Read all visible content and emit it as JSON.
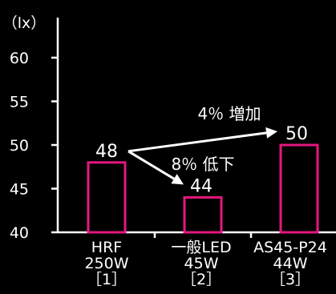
{
  "chart_data": {
    "type": "bar",
    "unit_label": "（lx）",
    "ylim": [
      40,
      63
    ],
    "yticks": [
      40,
      45,
      50,
      55,
      60
    ],
    "categories": [
      [
        "HRF",
        "250W",
        "［1］"
      ],
      [
        "一般LED",
        "45W",
        "［2］"
      ],
      [
        "AS45-P24",
        "44W",
        "［3］"
      ]
    ],
    "values": [
      48,
      44,
      50
    ],
    "value_labels": [
      "48",
      "44",
      "50"
    ],
    "annotations": [
      {
        "text": "4％ 増加",
        "from": 0,
        "to": 2
      },
      {
        "text": "8％ 低下",
        "from": 0,
        "to": 1
      }
    ],
    "colors": {
      "bar_outline": "#e5177e",
      "bar_fill": "#000000",
      "text": "#ffffff",
      "background": "#000000"
    }
  }
}
